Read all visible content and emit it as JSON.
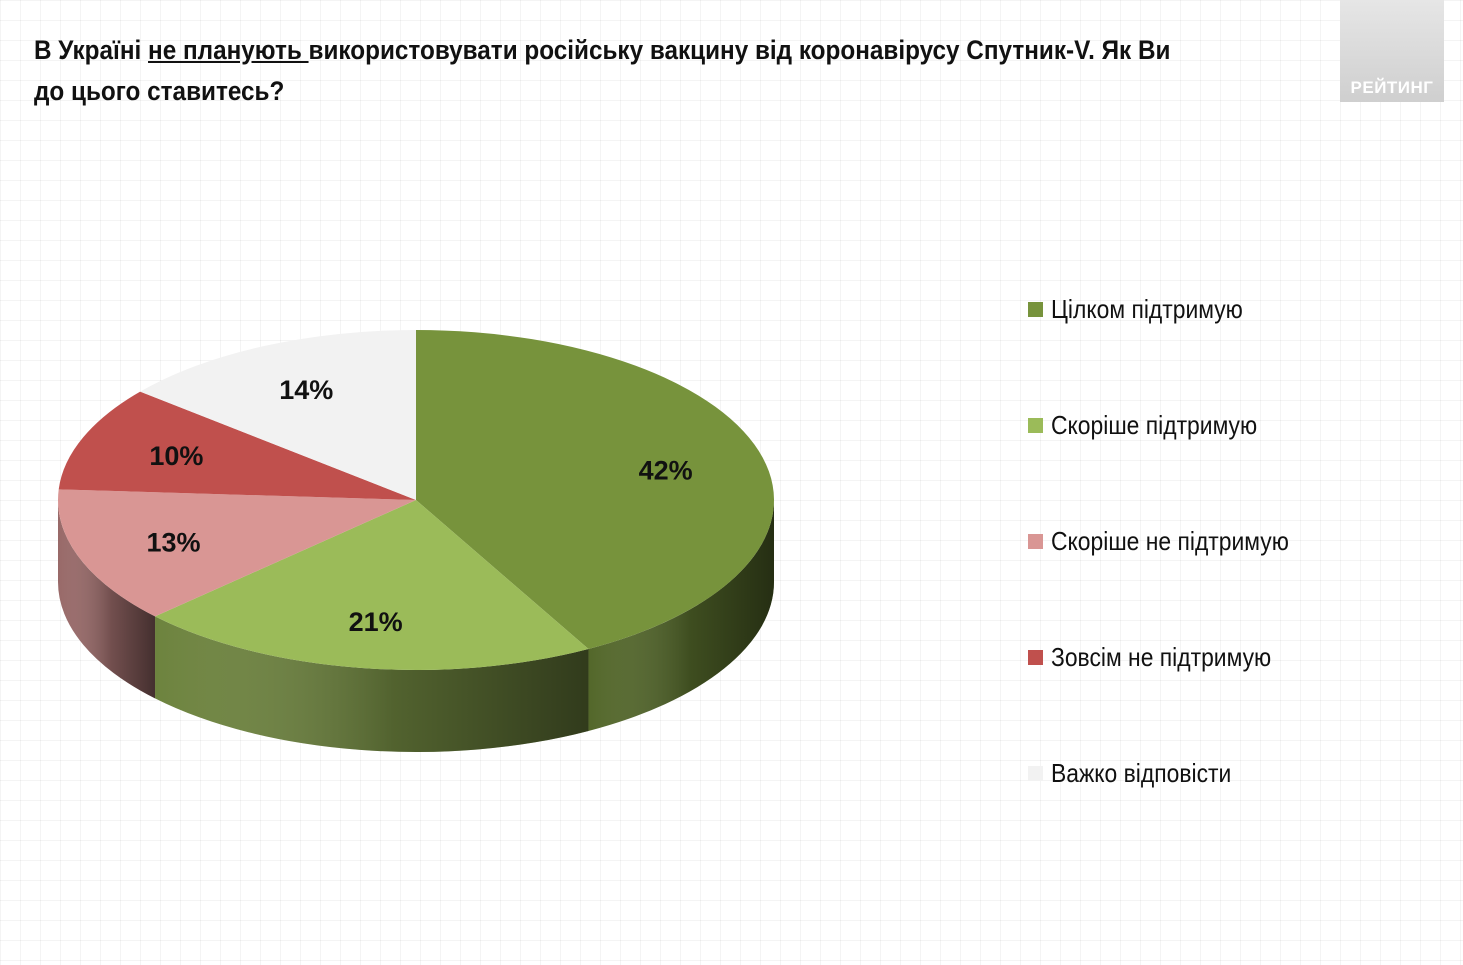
{
  "title": {
    "part1": "В Україні ",
    "underlined": "не планують ",
    "part2": "використовувати російську вакцину від коронавірусу Спутник-V. Як Ви до цього ставитесь?"
  },
  "logo": {
    "text": "РЕЙТИНГ"
  },
  "chart_data": {
    "type": "pie",
    "slices": [
      {
        "label": "Цілком підтримую",
        "value": 42,
        "display": "42%",
        "color": "#77933c"
      },
      {
        "label": "Скоріше підтримую",
        "value": 21,
        "display": "21%",
        "color": "#9bbb59"
      },
      {
        "label": "Скоріше не підтримую",
        "value": 13,
        "display": "13%",
        "color": "#d99694"
      },
      {
        "label": "Зовсім не підтримую",
        "value": 10,
        "display": "10%",
        "color": "#c0504d"
      },
      {
        "label": "Важко відповісти",
        "value": 14,
        "display": "14%",
        "color": "#f2f2f2"
      }
    ],
    "legend_position": "right",
    "three_d": true
  }
}
